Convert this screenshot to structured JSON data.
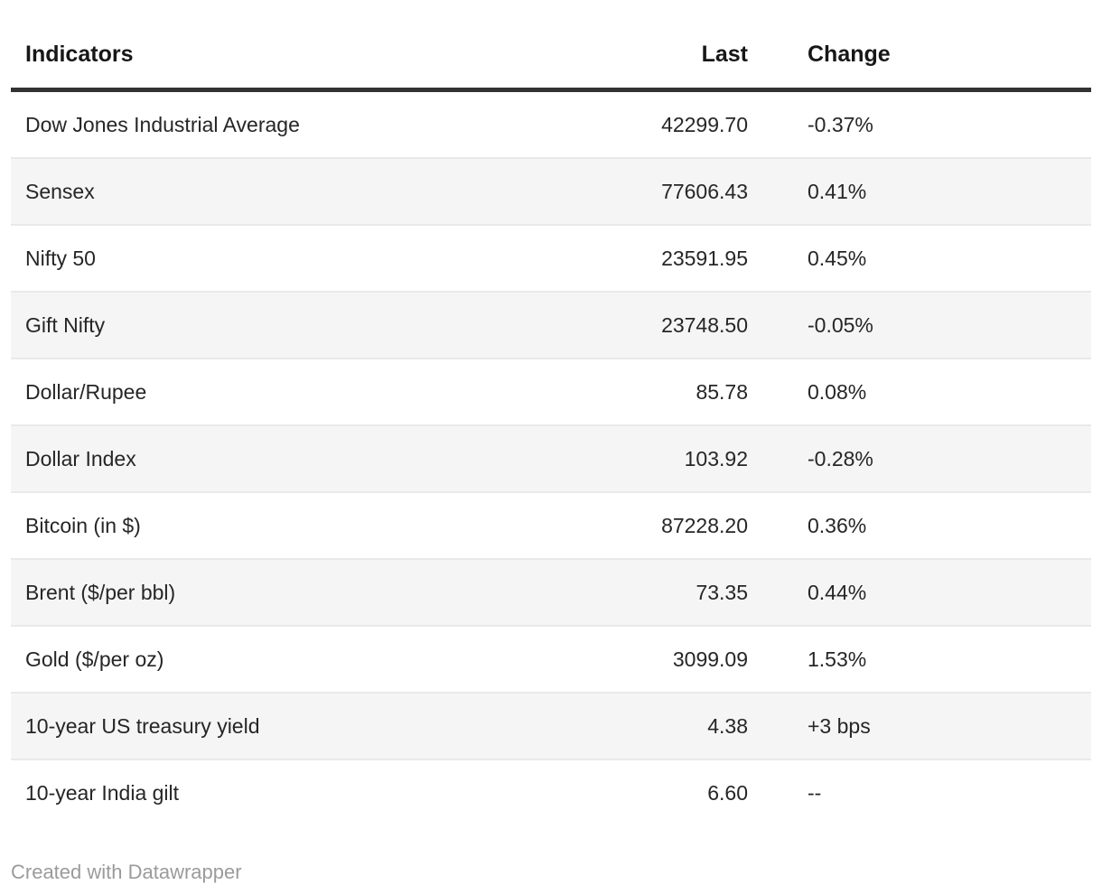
{
  "chart_data": {
    "type": "table",
    "title": "",
    "columns": [
      {
        "label": "Indicators",
        "align": "left"
      },
      {
        "label": "Last",
        "align": "right"
      },
      {
        "label": "Change",
        "align": "left"
      }
    ],
    "rows": [
      {
        "indicator": "Dow Jones Industrial Average",
        "last": "42299.70",
        "change": "-0.37%"
      },
      {
        "indicator": "Sensex",
        "last": "77606.43",
        "change": "0.41%"
      },
      {
        "indicator": "Nifty 50",
        "last": "23591.95",
        "change": "0.45%"
      },
      {
        "indicator": "Gift Nifty",
        "last": "23748.50",
        "change": "-0.05%"
      },
      {
        "indicator": "Dollar/Rupee",
        "last": "85.78",
        "change": "0.08%"
      },
      {
        "indicator": "Dollar Index",
        "last": "103.92",
        "change": "-0.28%"
      },
      {
        "indicator": "Bitcoin (in $)",
        "last": "87228.20",
        "change": "0.36%"
      },
      {
        "indicator": "Brent ($/per bbl)",
        "last": "73.35",
        "change": "0.44%"
      },
      {
        "indicator": "Gold ($/per oz)",
        "last": "3099.09",
        "change": "1.53%"
      },
      {
        "indicator": "10-year US treasury yield",
        "last": "4.38",
        "change": "+3 bps"
      },
      {
        "indicator": "10-year India gilt",
        "last": "6.60",
        "change": "--"
      }
    ],
    "layout_hints": {
      "striped_rows": "even rows shaded",
      "header_rule": "thick dark line under header",
      "grid": "thin light separators between rows"
    }
  },
  "footer": {
    "credit": "Created with Datawrapper"
  },
  "colors": {
    "background": "#ffffff",
    "header_text": "#171717",
    "body_text": "#262626",
    "header_rule": "#333333",
    "row_stripe": "#f5f5f5",
    "row_separator": "#e9e9e9",
    "credit_text": "#9b9b9b"
  }
}
